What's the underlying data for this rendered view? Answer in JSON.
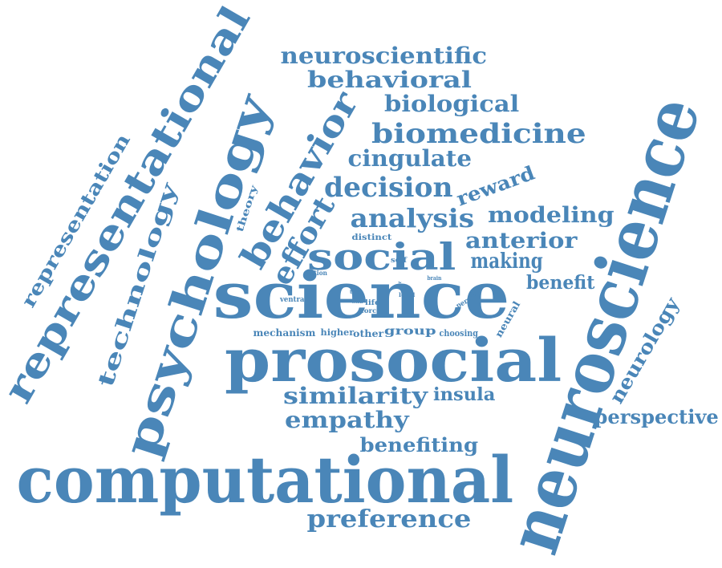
{
  "theme": {
    "word_color": "#4a86b8",
    "background": "#ffffff"
  },
  "words": [
    "computational",
    "neuroscience",
    "prosocial",
    "science",
    "psychology",
    "representational",
    "behavior",
    "social",
    "effort",
    "neuroscientific",
    "behavioral",
    "biological",
    "biomedicine",
    "cingulate",
    "decision",
    "reward",
    "analysis",
    "modeling",
    "anterior",
    "making",
    "benefit",
    "similarity",
    "insula",
    "empathy",
    "benefiting",
    "preference",
    "perspective",
    "neurology",
    "representation",
    "technology",
    "theory",
    "distinct",
    "self",
    "action",
    "brain",
    "ventral",
    "trial",
    "act",
    "work",
    "life",
    "force",
    "level",
    "person",
    "mechanism",
    "higher",
    "other",
    "group",
    "choosing",
    "neural"
  ]
}
